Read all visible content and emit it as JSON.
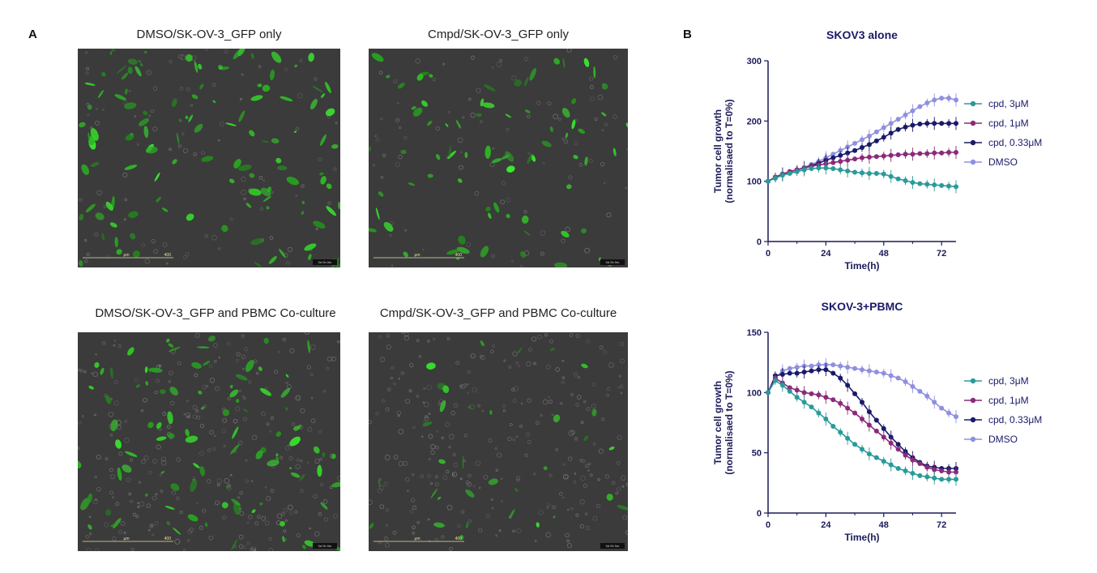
{
  "figure": {
    "panel_a_label": "A",
    "panel_b_label": "B",
    "images": [
      {
        "title": "DMSO/SK-OV-3_GFP only",
        "scale": "400",
        "scale_unit": "µm",
        "footer": "0d 0h 0m",
        "green_intensity": 0.55
      },
      {
        "title": "Cmpd/SK-OV-3_GFP only",
        "scale": "400",
        "scale_unit": "µm",
        "footer": "0d 0h 0m",
        "green_intensity": 0.35
      },
      {
        "title": "DMSO/SK-OV-3_GFP and PBMC Co-culture",
        "scale": "400",
        "scale_unit": "µm",
        "footer": "0d 0h 0m",
        "green_intensity": 0.45
      },
      {
        "title": "Cmpd/SK-OV-3_GFP and PBMC Co-culture",
        "scale": "400",
        "scale_unit": "µm",
        "footer": "0d 0h 0m",
        "green_intensity": 0.15
      }
    ]
  },
  "chart_data": [
    {
      "type": "line",
      "title": "SKOV3 alone",
      "xlabel": "Time(h)",
      "ylabel": "Tumor cell growth",
      "ylabel2": "(normalisaed to T=0%)",
      "xlim": [
        0,
        78
      ],
      "ylim": [
        0,
        300
      ],
      "xticks": [
        0,
        24,
        48,
        72
      ],
      "yticks": [
        0,
        100,
        200,
        300
      ],
      "legend_position": "right",
      "x": [
        0,
        3,
        6,
        9,
        12,
        15,
        18,
        21,
        24,
        27,
        30,
        33,
        36,
        39,
        42,
        45,
        48,
        51,
        54,
        57,
        60,
        63,
        66,
        69,
        72,
        75,
        78
      ],
      "series": [
        {
          "name": "cpd, 3μM",
          "color": "#2a9a9a",
          "values": [
            100,
            105,
            110,
            113,
            116,
            119,
            121,
            122,
            122,
            121,
            119,
            117,
            115,
            114,
            113,
            113,
            112,
            108,
            104,
            101,
            98,
            96,
            95,
            94,
            93,
            92,
            91
          ]
        },
        {
          "name": "cpd, 1μM",
          "color": "#8b2a7a",
          "values": [
            100,
            107,
            112,
            116,
            119,
            122,
            125,
            127,
            129,
            131,
            133,
            135,
            137,
            139,
            140,
            141,
            142,
            143,
            144,
            145,
            145,
            146,
            146,
            147,
            147,
            148,
            148
          ]
        },
        {
          "name": "cpd, 0.33μM",
          "color": "#1a1a6a",
          "values": [
            100,
            107,
            112,
            116,
            119,
            122,
            126,
            130,
            135,
            139,
            143,
            147,
            151,
            156,
            161,
            167,
            173,
            180,
            186,
            190,
            193,
            195,
            196,
            196,
            196,
            196,
            196
          ]
        },
        {
          "name": "DMSO",
          "color": "#9090e0",
          "values": [
            100,
            106,
            111,
            115,
            119,
            123,
            128,
            133,
            139,
            145,
            151,
            157,
            163,
            169,
            175,
            182,
            189,
            196,
            203,
            210,
            217,
            224,
            230,
            235,
            238,
            238,
            235
          ]
        }
      ]
    },
    {
      "type": "line",
      "title": "SKOV-3+PBMC",
      "xlabel": "Time(h)",
      "ylabel": "Tumor cell growth",
      "ylabel2": "(normalisaed to T=0%)",
      "xlim": [
        0,
        78
      ],
      "ylim": [
        0,
        150
      ],
      "xticks": [
        0,
        24,
        48,
        72
      ],
      "yticks": [
        0,
        50,
        100,
        150
      ],
      "legend_position": "right",
      "x": [
        0,
        3,
        6,
        9,
        12,
        15,
        18,
        21,
        24,
        27,
        30,
        33,
        36,
        39,
        42,
        45,
        48,
        51,
        54,
        57,
        60,
        63,
        66,
        69,
        72,
        75,
        78
      ],
      "series": [
        {
          "name": "cpd, 3μM",
          "color": "#2a9a9a",
          "values": [
            100,
            110,
            106,
            101,
            96,
            92,
            88,
            83,
            78,
            72,
            67,
            62,
            57,
            53,
            49,
            46,
            43,
            40,
            37,
            35,
            33,
            31,
            30,
            29,
            28,
            28,
            28
          ]
        },
        {
          "name": "cpd, 1μM",
          "color": "#8b2a7a",
          "values": [
            100,
            112,
            108,
            104,
            102,
            100,
            99,
            98,
            96,
            94,
            91,
            87,
            83,
            78,
            73,
            68,
            63,
            58,
            53,
            48,
            44,
            41,
            38,
            36,
            35,
            34,
            34
          ]
        },
        {
          "name": "cpd, 0.33μM",
          "color": "#1a1a6a",
          "values": [
            100,
            114,
            115,
            116,
            116,
            117,
            118,
            119,
            119,
            116,
            112,
            106,
            99,
            92,
            84,
            77,
            70,
            63,
            57,
            51,
            46,
            42,
            39,
            38,
            37,
            37,
            37
          ]
        },
        {
          "name": "DMSO",
          "color": "#9090e0",
          "values": [
            100,
            112,
            118,
            120,
            121,
            122,
            122,
            123,
            123,
            123,
            122,
            121,
            120,
            119,
            118,
            117,
            116,
            114,
            112,
            109,
            105,
            101,
            97,
            92,
            87,
            83,
            80
          ]
        }
      ]
    }
  ]
}
